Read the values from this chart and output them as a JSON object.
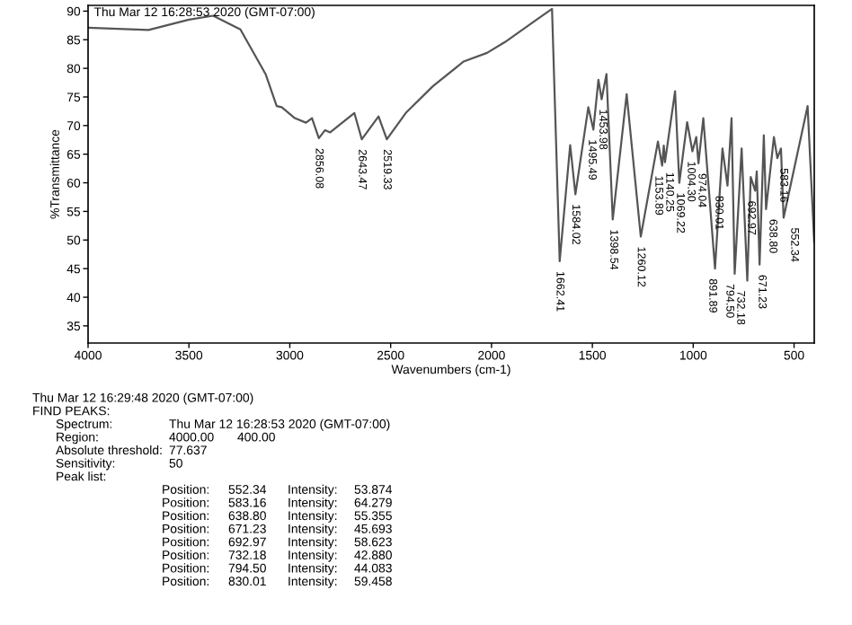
{
  "chart_data": {
    "type": "line",
    "xlabel": "Wavenumbers (cm-1)",
    "ylabel": "%Transmittance",
    "xlim": [
      4000,
      400
    ],
    "ylim": [
      32,
      91
    ],
    "xticks": [
      4000,
      3500,
      3000,
      2500,
      2000,
      1500,
      1000,
      500
    ],
    "yticks": [
      35,
      40,
      45,
      50,
      55,
      60,
      65,
      70,
      75,
      80,
      85,
      90
    ],
    "grid": false,
    "legend": false,
    "marker": "none",
    "line_style": "solid",
    "series": [
      {
        "color": "#555555",
        "x": [
          4000,
          3700,
          3500,
          3380,
          3245,
          3120,
          3065,
          3040,
          2975,
          2920,
          2890,
          2856,
          2825,
          2800,
          2680,
          2643,
          2560,
          2519,
          2425,
          2290,
          2138,
          2022,
          1933,
          1781,
          1700,
          1662,
          1610,
          1584,
          1520,
          1495,
          1470,
          1454,
          1430,
          1399,
          1330,
          1260,
          1175,
          1154,
          1146,
          1140,
          1090,
          1069,
          1030,
          1004,
          985,
          974,
          950,
          892,
          855,
          830,
          810,
          794.5,
          760,
          732,
          715,
          693,
          685,
          671,
          650,
          639,
          600,
          583,
          565,
          552,
          433,
          400
        ],
        "values": [
          87.1,
          86.7,
          88.5,
          89.2,
          86.8,
          79,
          73.4,
          73.2,
          71.3,
          70.5,
          71.3,
          67.8,
          69.2,
          68.8,
          72.2,
          67.6,
          71.6,
          67.6,
          72.2,
          76.9,
          81.2,
          82.7,
          84.6,
          88.4,
          90.4,
          46.3,
          66.6,
          58,
          73.2,
          69.3,
          78,
          74.6,
          79,
          53.6,
          75.5,
          50.6,
          67.2,
          63,
          66.5,
          63.6,
          76,
          60,
          70.6,
          65.5,
          68,
          63.4,
          71.3,
          45,
          66,
          59.5,
          71.3,
          44.1,
          66,
          42.9,
          61,
          58.6,
          62,
          45.7,
          68.3,
          55.4,
          68,
          64.3,
          66,
          53.9,
          73.4,
          49.5
        ]
      }
    ],
    "annotations": [
      "Thu Mar 12 16:28:53 2020 (GMT-07:00)",
      {
        "text": "2856.08",
        "x": 2856,
        "y": 67.8
      },
      {
        "text": "2643.47",
        "x": 2643,
        "y": 67.6
      },
      {
        "text": "2519.33",
        "x": 2519,
        "y": 67.6
      },
      {
        "text": "1662.41",
        "x": 1662,
        "y": 46.3
      },
      {
        "text": "1584.02",
        "x": 1584,
        "y": 58
      },
      {
        "text": "1495.49",
        "x": 1495,
        "y": 69.3
      },
      {
        "text": "1453.98",
        "x": 1454,
        "y": 74.6
      },
      {
        "text": "1398.54",
        "x": 1399,
        "y": 53.6
      },
      {
        "text": "1260.12",
        "x": 1260,
        "y": 50.6
      },
      {
        "text": "1153.89",
        "x": 1154,
        "y": 63
      },
      {
        "text": "1140.25",
        "x": 1140,
        "y": 63.6
      },
      {
        "text": "1069.22",
        "x": 1069,
        "y": 60
      },
      {
        "text": "1004.30",
        "x": 1004,
        "y": 65.5
      },
      {
        "text": "974.04",
        "x": 974,
        "y": 63.4
      },
      {
        "text": "891.89",
        "x": 892,
        "y": 45
      },
      {
        "text": "830.01",
        "x": 830,
        "y": 59.5
      },
      {
        "text": "794.50",
        "x": 794.5,
        "y": 44.1
      },
      {
        "text": "732.18",
        "x": 732,
        "y": 42.9
      },
      {
        "text": "692.97",
        "x": 693,
        "y": 58.6
      },
      {
        "text": "671.23",
        "x": 671,
        "y": 45.7
      },
      {
        "text": "638.80",
        "x": 639,
        "y": 55.4
      },
      {
        "text": "583.16",
        "x": 583,
        "y": 64.3
      },
      {
        "text": "552.34",
        "x": 552,
        "y": 53.9
      },
      "Thu Mar 12 16:29:48 2020 (GMT-07:00)",
      "FIND PEAKS:",
      "Spectrum:  Thu Mar 12 16:28:53 2020 (GMT-07:00)",
      "Region:  4000.00  400.00",
      "Absolute threshold:  77.637",
      "Sensitivity:  50",
      "Peak list:",
      "Position:  552.34  Intensity:  53.874",
      "Position:  583.16  Intensity:  64.279",
      "Position:  638.80  Intensity:  55.355",
      "Position:  671.23  Intensity:  45.693",
      "Position:  692.97  Intensity:  58.623",
      "Position:  732.18  Intensity:  42.880",
      "Position:  794.50  Intensity:  44.083",
      "Position:  830.01  Intensity:  59.458"
    ]
  }
}
